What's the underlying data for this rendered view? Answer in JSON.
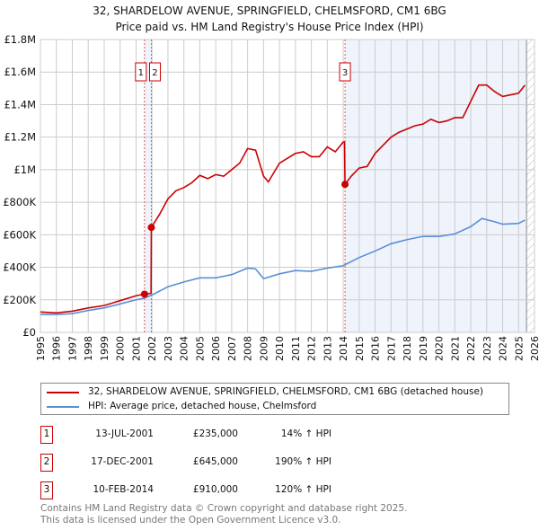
{
  "chart_data": {
    "type": "line",
    "title": "32, SHARDELOW AVENUE, SPRINGFIELD, CHELMSFORD, CM1 6BG",
    "subtitle": "Price paid vs. HM Land Registry's House Price Index (HPI)",
    "xlim": [
      1995,
      2026
    ],
    "ylim": [
      0,
      1800000
    ],
    "x_ticks": [
      "1995",
      "1996",
      "1997",
      "1998",
      "1999",
      "2000",
      "2001",
      "2002",
      "2003",
      "2004",
      "2005",
      "2006",
      "2007",
      "2008",
      "2009",
      "2010",
      "2011",
      "2012",
      "2013",
      "2014",
      "2015",
      "2016",
      "2017",
      "2018",
      "2019",
      "2020",
      "2021",
      "2022",
      "2023",
      "2024",
      "2025",
      "2026"
    ],
    "y_ticks": [
      {
        "v": 0,
        "label": "£0"
      },
      {
        "v": 200000,
        "label": "£200K"
      },
      {
        "v": 400000,
        "label": "£400K"
      },
      {
        "v": 600000,
        "label": "£600K"
      },
      {
        "v": 800000,
        "label": "£800K"
      },
      {
        "v": 1000000,
        "label": "£1M"
      },
      {
        "v": 1200000,
        "label": "£1.2M"
      },
      {
        "v": 1400000,
        "label": "£1.4M"
      },
      {
        "v": 1600000,
        "label": "£1.6M"
      },
      {
        "v": 1800000,
        "label": "£1.8M"
      }
    ],
    "series": [
      {
        "name": "32, SHARDELOW AVENUE, SPRINGFIELD, CHELMSFORD, CM1 6BG (detached house)",
        "color": "#cc0000",
        "x": [
          1995,
          1996,
          1997,
          1998,
          1999,
          2000,
          2001,
          2001.53,
          2001.94,
          2001.96,
          2002.5,
          2003,
          2003.5,
          2004,
          2004.5,
          2005,
          2005.5,
          2006,
          2006.5,
          2007,
          2007.5,
          2008,
          2008.5,
          2009,
          2009.3,
          2010,
          2010.5,
          2011,
          2011.5,
          2012,
          2012.5,
          2013,
          2013.5,
          2014,
          2014.08,
          2014.11,
          2014.5,
          2015,
          2015.5,
          2016,
          2016.5,
          2017,
          2017.5,
          2018,
          2018.5,
          2019,
          2019.5,
          2020,
          2020.5,
          2021,
          2021.5,
          2022,
          2022.5,
          2023,
          2023.5,
          2024,
          2024.5,
          2025,
          2025.4
        ],
        "y": [
          125000,
          120000,
          130000,
          150000,
          165000,
          195000,
          225000,
          235000,
          240000,
          645000,
          730000,
          820000,
          870000,
          890000,
          920000,
          965000,
          945000,
          970000,
          960000,
          1000000,
          1040000,
          1130000,
          1120000,
          960000,
          925000,
          1040000,
          1070000,
          1100000,
          1110000,
          1080000,
          1080000,
          1140000,
          1110000,
          1170000,
          1170000,
          910000,
          960000,
          1010000,
          1020000,
          1100000,
          1150000,
          1200000,
          1230000,
          1250000,
          1270000,
          1280000,
          1310000,
          1290000,
          1300000,
          1320000,
          1320000,
          1420000,
          1520000,
          1520000,
          1480000,
          1450000,
          1460000,
          1470000,
          1520000
        ]
      },
      {
        "name": "HPI: Average price, detached house, Chelmsford",
        "color": "#5b8fd6",
        "x": [
          1995,
          1996,
          1997,
          1998,
          1999,
          2000,
          2001,
          2001.5,
          2002,
          2003,
          2004,
          2005,
          2006,
          2007,
          2008,
          2008.5,
          2009,
          2010,
          2011,
          2012,
          2013,
          2014,
          2015,
          2016,
          2017,
          2018,
          2019,
          2020,
          2021,
          2022,
          2022.7,
          2023.5,
          2024,
          2025,
          2025.4
        ],
        "y": [
          110000,
          110000,
          115000,
          135000,
          150000,
          175000,
          200000,
          210000,
          230000,
          280000,
          310000,
          335000,
          335000,
          355000,
          395000,
          390000,
          330000,
          360000,
          380000,
          375000,
          395000,
          410000,
          460000,
          500000,
          545000,
          570000,
          590000,
          590000,
          605000,
          650000,
          700000,
          680000,
          665000,
          670000,
          690000
        ]
      }
    ],
    "sales": [
      {
        "n": "1",
        "x": 2001.53,
        "y": 235000,
        "date": "13-JUL-2001",
        "price": "£235,000",
        "hpi": "14% ↑ HPI"
      },
      {
        "n": "2",
        "x": 2001.96,
        "y": 645000,
        "date": "17-DEC-2001",
        "price": "£645,000",
        "hpi": "190% ↑ HPI"
      },
      {
        "n": "3",
        "x": 2014.11,
        "y": 910000,
        "date": "10-FEB-2014",
        "price": "£910,000",
        "hpi": "120% ↑ HPI"
      }
    ],
    "forecast_start": 2025.5,
    "legend_position": "below"
  },
  "footer": [
    "Contains HM Land Registry data © Crown copyright and database right 2025.",
    "This data is licensed under the Open Government Licence v3.0."
  ]
}
